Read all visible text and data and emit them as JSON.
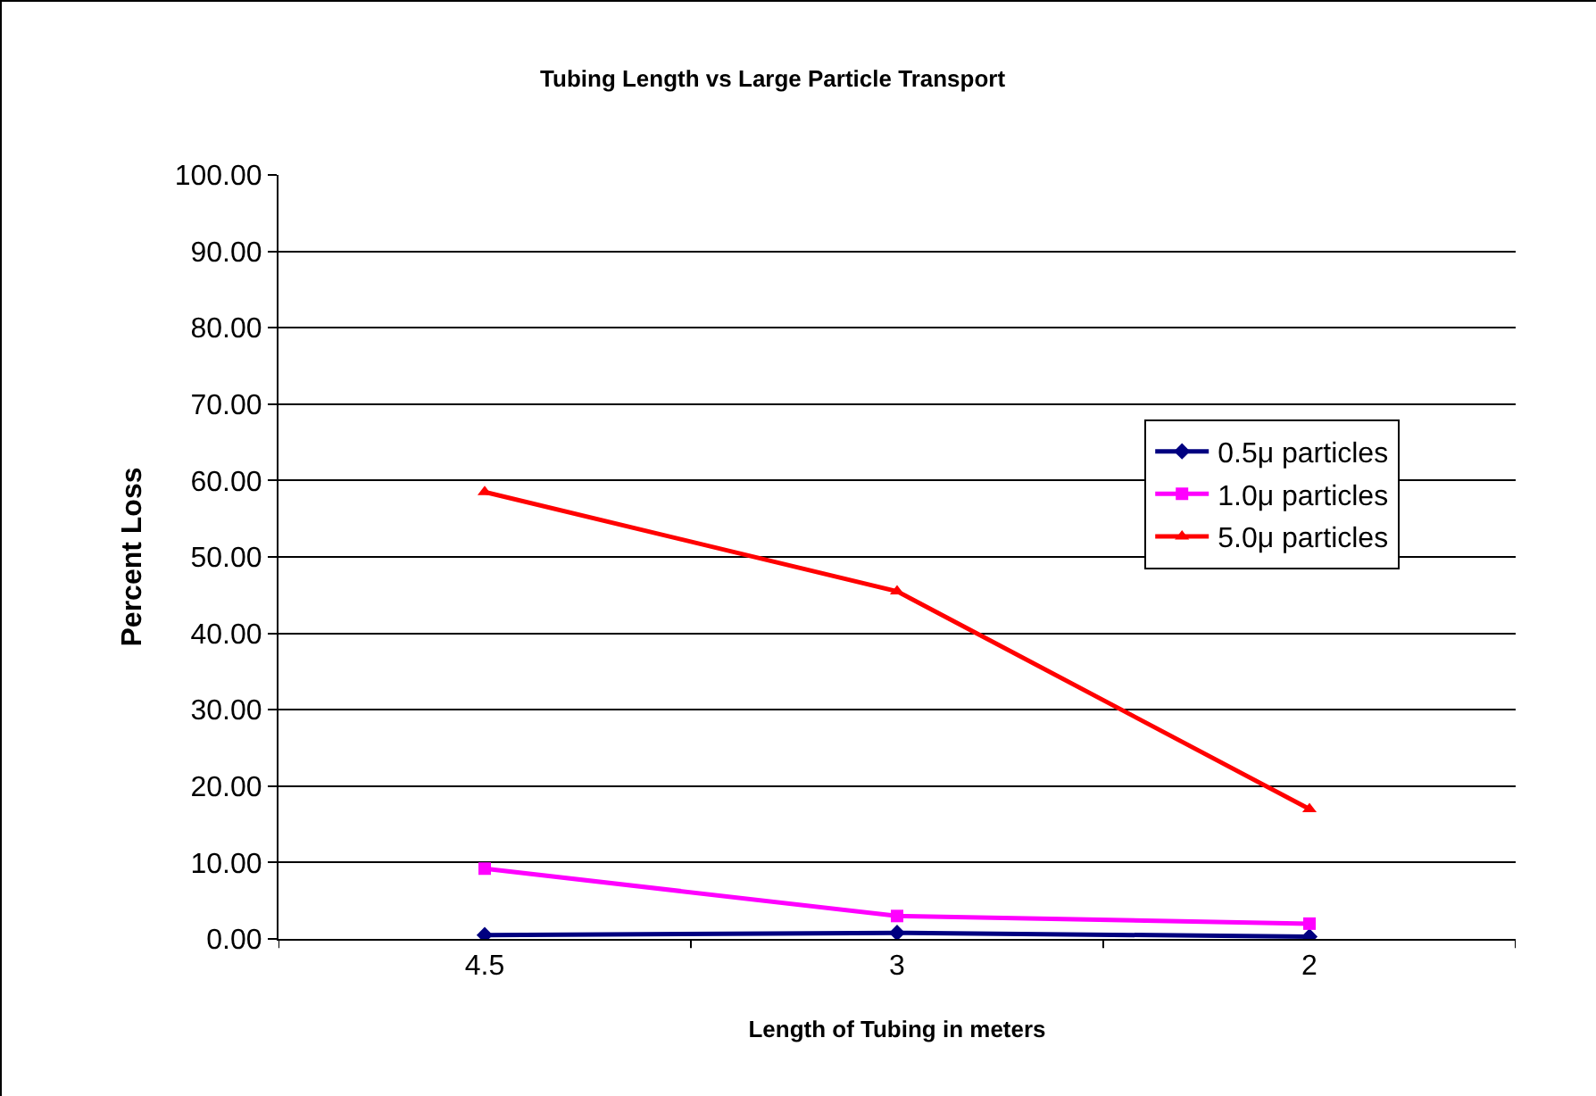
{
  "chart_data": {
    "type": "line",
    "title": "Tubing Length vs Large Particle Transport",
    "xlabel": "Length of Tubing in meters",
    "ylabel": "Percent Loss",
    "categories": [
      "4.5",
      "3",
      "2"
    ],
    "series": [
      {
        "name": "0.5μ particles",
        "color": "#000080",
        "marker": "diamond",
        "values": [
          0.5,
          0.8,
          0.3
        ]
      },
      {
        "name": "1.0μ particles",
        "color": "#ff00ff",
        "marker": "square",
        "values": [
          9.2,
          3.0,
          2.0
        ]
      },
      {
        "name": "5.0μ particles",
        "color": "#ff0000",
        "marker": "triangle",
        "values": [
          58.5,
          45.5,
          17.0
        ]
      }
    ],
    "ylim": [
      0,
      100
    ],
    "yticks": [
      {
        "value": 0,
        "label": "0.00"
      },
      {
        "value": 10,
        "label": "10.00"
      },
      {
        "value": 20,
        "label": "20.00"
      },
      {
        "value": 30,
        "label": "30.00"
      },
      {
        "value": 40,
        "label": "40.00"
      },
      {
        "value": 50,
        "label": "50.00"
      },
      {
        "value": 60,
        "label": "60.00"
      },
      {
        "value": 70,
        "label": "70.00"
      },
      {
        "value": 80,
        "label": "80.00"
      },
      {
        "value": 90,
        "label": "90.00"
      },
      {
        "value": 100,
        "label": "100.00"
      }
    ],
    "grid": "y",
    "legend": "right",
    "line_style": "solid"
  }
}
